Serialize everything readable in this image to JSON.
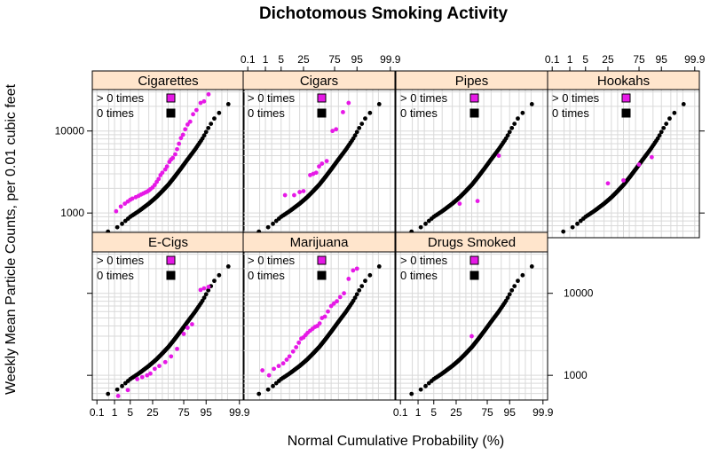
{
  "chart_data": {
    "type": "scatter",
    "title": "Dichotomous Smoking Activity",
    "xlabel": "Normal Cumulative Probability (%)",
    "ylabel": "Weekly Mean Particle Counts, per 0.01 cubic feet",
    "x_scale": "normal-probability",
    "y_scale": "log",
    "x_ticks": [
      0.1,
      1,
      5,
      25,
      75,
      95,
      99.9
    ],
    "x_tick_labels": [
      "0.1",
      "1",
      "5",
      "25",
      "75",
      "95",
      "99.9"
    ],
    "y_ticks": [
      1000,
      10000
    ],
    "y_tick_labels": [
      "1000",
      "10000"
    ],
    "xlim": [
      0.05,
      99.95
    ],
    "ylim": [
      500,
      32000
    ],
    "grid": true,
    "colors": {
      "zero_times": "#000000",
      "gt_zero_times": "#e619e6",
      "strip_background": "#ffe5cc",
      "grid": "#d9d9d9",
      "panel_border": "#000000"
    },
    "legend_entries": [
      "> 0 times",
      "0 times"
    ],
    "baseline_exposure_curve": [
      [
        0.2,
        560
      ],
      [
        0.8,
        620
      ],
      [
        1.8,
        700
      ],
      [
        3,
        790
      ],
      [
        5,
        900
      ],
      [
        10,
        1050
      ],
      [
        20,
        1300
      ],
      [
        30,
        1550
      ],
      [
        40,
        1850
      ],
      [
        50,
        2200
      ],
      [
        60,
        2700
      ],
      [
        70,
        3400
      ],
      [
        80,
        4500
      ],
      [
        88,
        6000
      ],
      [
        93,
        8000
      ],
      [
        96,
        11000
      ],
      [
        98,
        15000
      ],
      [
        99.2,
        19000
      ],
      [
        99.7,
        23000
      ],
      [
        99.92,
        27000
      ]
    ],
    "panels": [
      {
        "name": "Cigarettes",
        "gt0": [
          [
            1.2,
            1050
          ],
          [
            2,
            1200
          ],
          [
            3,
            1300
          ],
          [
            4,
            1380
          ],
          [
            5,
            1450
          ],
          [
            6,
            1500
          ],
          [
            8,
            1560
          ],
          [
            10,
            1620
          ],
          [
            12,
            1680
          ],
          [
            14,
            1730
          ],
          [
            16,
            1780
          ],
          [
            18,
            1820
          ],
          [
            20,
            1880
          ],
          [
            22,
            1950
          ],
          [
            25,
            2050
          ],
          [
            28,
            2200
          ],
          [
            31,
            2400
          ],
          [
            34,
            2600
          ],
          [
            37,
            2900
          ],
          [
            40,
            3100
          ],
          [
            45,
            3400
          ],
          [
            48,
            3700
          ],
          [
            52,
            4200
          ],
          [
            55,
            4500
          ],
          [
            58,
            4700
          ],
          [
            62,
            5200
          ],
          [
            65,
            6000
          ],
          [
            68,
            7000
          ],
          [
            71,
            8200
          ],
          [
            74,
            9000
          ],
          [
            77,
            10500
          ],
          [
            80,
            12000
          ],
          [
            83,
            13000
          ],
          [
            86,
            16000
          ],
          [
            89,
            18000
          ],
          [
            92,
            22000
          ],
          [
            94,
            23000
          ],
          [
            96,
            28000
          ]
        ]
      },
      {
        "name": "Cigars",
        "gt0": [
          [
            7,
            1650
          ],
          [
            14,
            1650
          ],
          [
            20,
            1800
          ],
          [
            25,
            1850
          ],
          [
            35,
            2900
          ],
          [
            40,
            3000
          ],
          [
            45,
            3100
          ],
          [
            50,
            3700
          ],
          [
            55,
            4000
          ],
          [
            63,
            4300
          ],
          [
            72,
            10000
          ],
          [
            77,
            10500
          ],
          [
            85,
            17000
          ],
          [
            90,
            22000
          ]
        ]
      },
      {
        "name": "Pipes",
        "gt0": [
          [
            30,
            1300
          ],
          [
            60,
            1400
          ],
          [
            88,
            5000
          ]
        ]
      },
      {
        "name": "Hookahs",
        "gt0": [
          [
            25,
            2300
          ],
          [
            50,
            2500
          ],
          [
            75,
            3900
          ],
          [
            89,
            4800
          ]
        ]
      },
      {
        "name": "E-Cigs",
        "gt0": [
          [
            1.5,
            560
          ],
          [
            4,
            660
          ],
          [
            9,
            900
          ],
          [
            13,
            950
          ],
          [
            18,
            1000
          ],
          [
            22,
            1050
          ],
          [
            28,
            1200
          ],
          [
            35,
            1300
          ],
          [
            45,
            1450
          ],
          [
            55,
            1700
          ],
          [
            65,
            2100
          ],
          [
            75,
            3200
          ],
          [
            80,
            3800
          ],
          [
            85,
            4200
          ],
          [
            92,
            11000
          ],
          [
            94,
            11500
          ],
          [
            96,
            12000
          ]
        ]
      },
      {
        "name": "Marijuana",
        "gt0": [
          [
            0.7,
            1150
          ],
          [
            1.5,
            1000
          ],
          [
            2.5,
            1200
          ],
          [
            4,
            1300
          ],
          [
            6,
            1400
          ],
          [
            8,
            1550
          ],
          [
            10,
            1700
          ],
          [
            13,
            1950
          ],
          [
            16,
            2200
          ],
          [
            19,
            2500
          ],
          [
            22,
            2800
          ],
          [
            25,
            2900
          ],
          [
            28,
            3100
          ],
          [
            31,
            3300
          ],
          [
            35,
            3500
          ],
          [
            39,
            3700
          ],
          [
            43,
            3900
          ],
          [
            47,
            4000
          ],
          [
            51,
            4300
          ],
          [
            55,
            5000
          ],
          [
            60,
            5200
          ],
          [
            65,
            6000
          ],
          [
            70,
            7000
          ],
          [
            74,
            7500
          ],
          [
            78,
            8000
          ],
          [
            82,
            9000
          ],
          [
            86,
            10000
          ],
          [
            90,
            15000
          ],
          [
            93,
            19000
          ],
          [
            95,
            20000
          ]
        ]
      },
      {
        "name": "Drugs Smoked",
        "gt0": [
          [
            50,
            3000
          ]
        ]
      }
    ]
  }
}
